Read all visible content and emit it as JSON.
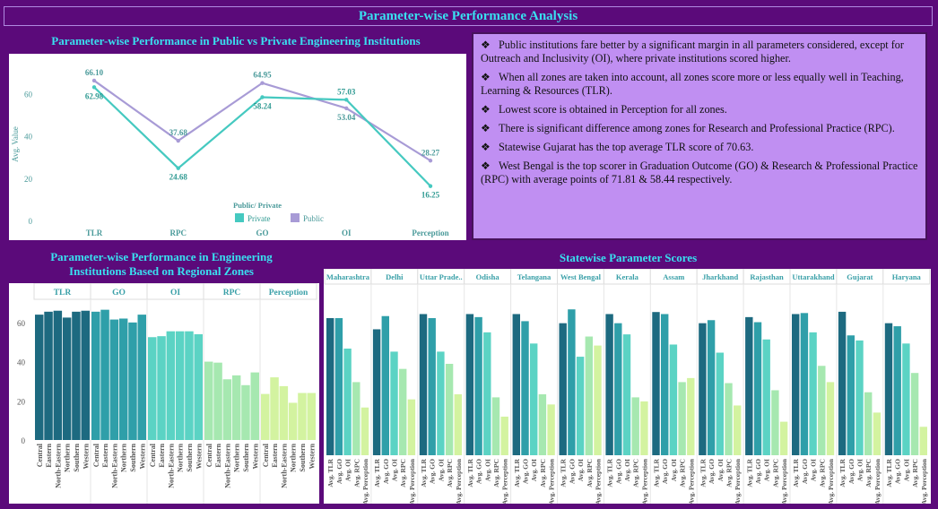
{
  "page": {
    "title": "Parameter-wise Performance Analysis"
  },
  "colors": {
    "private": "#45c9c0",
    "public": "#a89bd6",
    "background": "#5b0a7a",
    "title": "#39e0f0",
    "insights_bg": "#c08ff2"
  },
  "public_private": {
    "title": "Parameter-wise Performance in Public vs Private Engineering Institutions",
    "ylabel": "Avg. Value",
    "legend_title": "Public/ Private",
    "legend_private": "Private",
    "legend_public": "Public",
    "yticks": [
      "0",
      "20",
      "40",
      "60"
    ]
  },
  "insights": {
    "bullet": "❖",
    "items": [
      "Public institutions fare better by a significant margin in all parameters considered, except for Outreach and Inclusivity (OI), where private institutions scored higher.",
      "When all zones are taken into account,  all zones score more or less equally well in Teaching, Learning & Resources (TLR).",
      "Lowest score is obtained in Perception for all zones.",
      "There is significant difference among zones for Research and Professional Practice (RPC).",
      "Statewise Gujarat has the top average TLR score of 70.63.",
      "West Bengal is the top scorer in Graduation Outcome (GO) & Research & Professional Practice (RPC) with average points of 71.81 & 58.44 respectively."
    ]
  },
  "zones_chart": {
    "title": "Parameter-wise Performance in Engineering Institutions Based on Regional Zones",
    "yticks": [
      "0",
      "20",
      "40",
      "60"
    ]
  },
  "states_chart": {
    "title": "Statewise Parameter Scores"
  },
  "chart_data": [
    {
      "type": "line",
      "title": "Parameter-wise Performance in Public vs Private Engineering Institutions",
      "ylabel": "Avg. Value",
      "ylim": [
        0,
        72
      ],
      "categories": [
        "TLR",
        "RPC",
        "GO",
        "OI",
        "Perception"
      ],
      "series": [
        {
          "name": "Private",
          "values": [
            62.98,
            24.68,
            58.24,
            57.03,
            16.25
          ],
          "labels": [
            "62.98",
            "24.68",
            "58.24",
            "57.03",
            "16.25"
          ]
        },
        {
          "name": "Public",
          "values": [
            66.1,
            37.68,
            64.95,
            53.04,
            28.27
          ],
          "labels": [
            "66.10",
            "37.68",
            "64.95",
            "53.04",
            "28.27"
          ]
        }
      ]
    },
    {
      "type": "bar",
      "title": "Parameter-wise Performance in Engineering Institutions Based on Regional Zones",
      "ylim": [
        0,
        70
      ],
      "groups": [
        "TLR",
        "GO",
        "OI",
        "RPC",
        "Perception"
      ],
      "zones": [
        "Central",
        "Eastern",
        "North-Eastern",
        "Northern",
        "Southern",
        "Western"
      ],
      "group_colors": [
        "#1d6a80",
        "#2f9fa9",
        "#5bd3c4",
        "#a6e8b0",
        "#d3f3a0"
      ],
      "values": [
        [
          64,
          65.5,
          66,
          62.5,
          65.5,
          66
        ],
        [
          65.5,
          66.5,
          61.5,
          62,
          60,
          64
        ],
        [
          52.5,
          53,
          55.5,
          55.5,
          55.5,
          54
        ],
        [
          40,
          39.5,
          31,
          33,
          28,
          34.5
        ],
        [
          23.5,
          32,
          27.5,
          19,
          24,
          24
        ]
      ]
    },
    {
      "type": "bar",
      "title": "Statewise Parameter Scores",
      "ylim": [
        0,
        75
      ],
      "parameters": [
        "Avg. TLR",
        "Avg. GO",
        "Avg. OI",
        "Avg. RPC",
        "Avg. Perception"
      ],
      "parameter_colors": [
        "#1d6a80",
        "#2f9fa9",
        "#5bd3c4",
        "#a6e8b0",
        "#d3f3a0"
      ],
      "states": [
        "Maharashtra",
        "Delhi",
        "Uttar Prade..",
        "Odisha",
        "Telangana",
        "West Bengal",
        "Kerala",
        "Assam",
        "Jharkhand",
        "Rajasthan",
        "Uttarakhand",
        "Gujarat",
        "Haryana"
      ],
      "values": [
        [
          67.5,
          67.5,
          52.5,
          36,
          23.5
        ],
        [
          62,
          68.5,
          51,
          42.5,
          27.5
        ],
        [
          69.5,
          67.5,
          51,
          45,
          30
        ],
        [
          69.5,
          68,
          60.5,
          28.5,
          19
        ],
        [
          69.5,
          66,
          55,
          30,
          25
        ],
        [
          65,
          71.81,
          48.5,
          58.44,
          54
        ],
        [
          69.5,
          65,
          59.5,
          28.5,
          26.5
        ],
        [
          70.5,
          69.5,
          54.5,
          36,
          38
        ],
        [
          65,
          66.5,
          50.5,
          35.5,
          24.5
        ],
        [
          68,
          65.5,
          57,
          32,
          16.5
        ],
        [
          69.5,
          70,
          60.5,
          44,
          36
        ],
        [
          70.63,
          59,
          56.5,
          31,
          21
        ],
        [
          65,
          63.5,
          55,
          40.5,
          14
        ]
      ]
    }
  ]
}
